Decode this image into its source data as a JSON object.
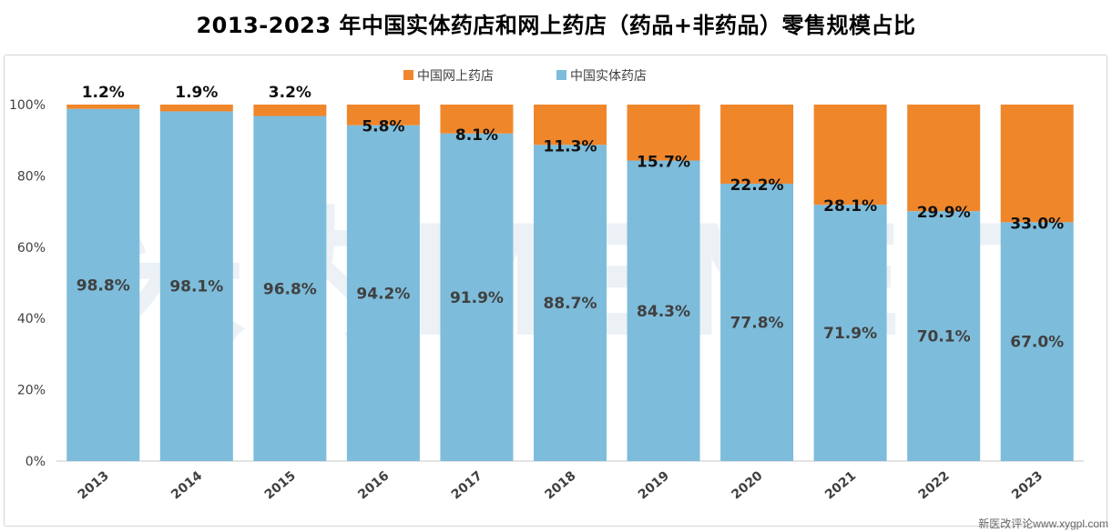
{
  "chart_data": {
    "type": "bar",
    "stacked": true,
    "title": "2013-2023 年中国实体药店和网上药店（药品+非药品）零售规模占比",
    "categories": [
      "2013",
      "2014",
      "2015",
      "2016",
      "2017",
      "2018",
      "2019",
      "2020",
      "2021",
      "2022",
      "2023"
    ],
    "series": [
      {
        "name": "中国实体药店",
        "color": "#7dbcdb",
        "values": [
          98.8,
          98.1,
          96.8,
          94.2,
          91.9,
          88.7,
          84.3,
          77.8,
          71.9,
          70.1,
          67.0
        ],
        "labels": [
          "98.8%",
          "98.1%",
          "96.8%",
          "94.2%",
          "91.9%",
          "88.7%",
          "84.3%",
          "77.8%",
          "71.9%",
          "70.1%",
          "67.0%"
        ]
      },
      {
        "name": "中国网上药店",
        "color": "#f0862a",
        "values": [
          1.2,
          1.9,
          3.2,
          5.8,
          8.1,
          11.3,
          15.7,
          22.2,
          28.1,
          29.9,
          33.0
        ],
        "labels": [
          "1.2%",
          "1.9%",
          "3.2%",
          "5.8%",
          "8.1%",
          "11.3%",
          "15.7%",
          "22.2%",
          "28.1%",
          "29.9%",
          "33.0%"
        ]
      }
    ],
    "legend_order": [
      "中国网上药店",
      "中国实体药店"
    ],
    "legend_position": "top",
    "y_ticks": [
      "0%",
      "20%",
      "40%",
      "60%",
      "80%",
      "100%"
    ],
    "ylim": [
      0,
      100
    ],
    "grid": false
  },
  "watermark": "米内MENET",
  "credit": "新医改评论www.xygpl.com"
}
